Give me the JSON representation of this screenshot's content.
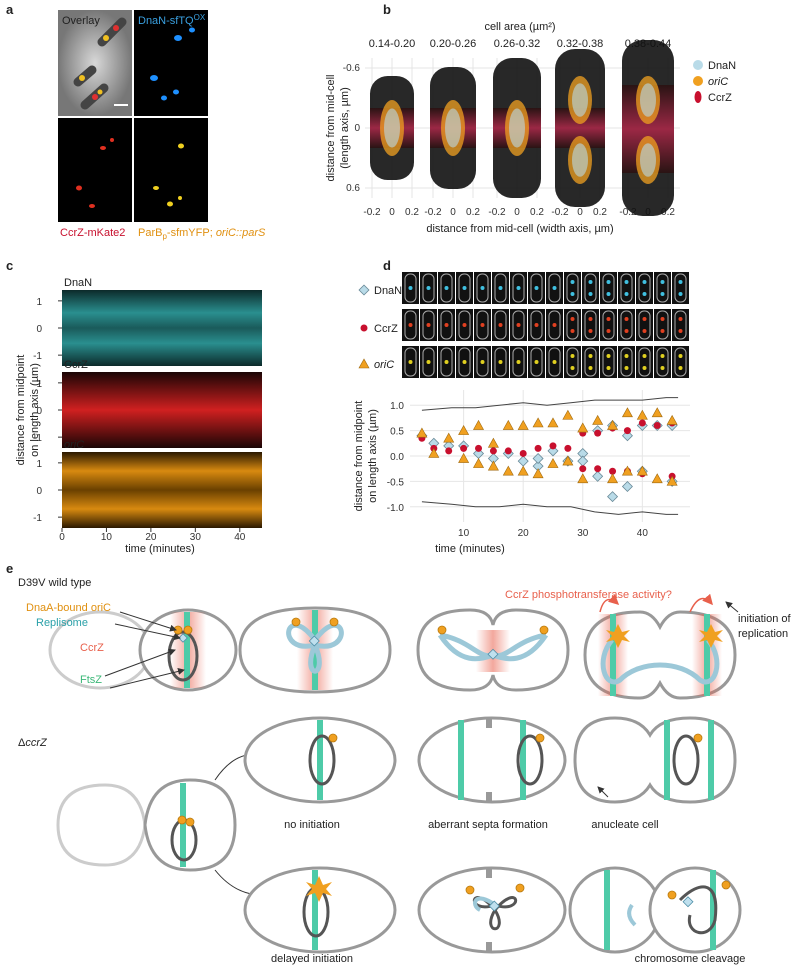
{
  "panel_a": {
    "label": "a",
    "overlay": "Overlay",
    "dnan": "DnaN-sfTQ",
    "dnan_sup": "OX",
    "ccrz": "CcrZ-mKate2",
    "parb": "ParB",
    "parb_sub": "p",
    "parb_rest": "-sfmYFP; ",
    "parb_locus": "oriC::parS"
  },
  "panel_b": {
    "label": "b",
    "title": "cell area (µm²)",
    "bins": [
      "0.14-0.20",
      "0.20-0.26",
      "0.26-0.32",
      "0.32-0.38",
      "0.38-0.44"
    ],
    "ylabel": [
      "distance from mid-cell",
      "(length axis, µm)"
    ],
    "xlabel": "distance from mid-cell (width axis, µm)",
    "ylim": [
      0.7,
      -0.7
    ],
    "yticks": [
      -0.6,
      0,
      0.6
    ],
    "xlim": [
      -0.3,
      0.3
    ],
    "xticks": [
      -0.2,
      0,
      0.2
    ],
    "legend": [
      {
        "name": "DnaN",
        "color": "#b9dbe8"
      },
      {
        "name": "oriC",
        "color": "#f0a020"
      },
      {
        "name": "CcrZ",
        "color": "#c8102e"
      }
    ]
  },
  "panel_c": {
    "label": "c",
    "bands": [
      {
        "name": "DnaN",
        "yticks": [
          1,
          0,
          -1
        ]
      },
      {
        "name": "CcrZ",
        "yticks": [
          1,
          0,
          -1
        ]
      },
      {
        "name": "oriC",
        "yticks": [
          1,
          0,
          -1
        ]
      }
    ],
    "ylim": [
      -1.4,
      1.4
    ],
    "xlim": [
      0,
      45
    ],
    "xticks": [
      0,
      10,
      20,
      30,
      40
    ],
    "xlabel": "time (minutes)",
    "ylabel": [
      "distance from midpoint",
      "on length axis (µm)"
    ]
  },
  "panel_d": {
    "label": "d",
    "chart_data": {
      "type": "scatter",
      "xlabel": "time (minutes)",
      "ylabel": [
        "distance from midpoint",
        "on length axis (µm)"
      ],
      "xlim": [
        1,
        48
      ],
      "xticks": [
        10,
        20,
        30,
        40
      ],
      "ylim": [
        -1.3,
        1.3
      ],
      "yticks": [
        {
          "value": 1,
          "label": "1.0"
        },
        0.5,
        {
          "value": 0,
          "label": "0.0"
        },
        -0.5,
        {
          "value": -1,
          "label": "-1.0"
        }
      ],
      "grid": true,
      "series": [
        {
          "name": "DnaN",
          "color": "#b9dbe8",
          "marker": "diamond",
          "x": [
            3,
            5,
            7.5,
            10,
            12.5,
            15,
            17.5,
            20,
            22.5,
            22.5,
            25,
            27.5,
            30,
            30,
            32.5,
            32.5,
            35,
            35,
            37.5,
            37.5,
            40,
            40,
            42.5,
            45,
            45
          ],
          "values": [
            0.4,
            0.25,
            0.2,
            0.2,
            0.05,
            -0.05,
            0.05,
            -0.1,
            -0.2,
            -0.05,
            0.1,
            -0.1,
            0.05,
            -0.1,
            0.5,
            -0.4,
            0.6,
            -0.8,
            -0.6,
            0.4,
            0.6,
            -0.3,
            0.6,
            0.6,
            -0.5
          ]
        },
        {
          "name": "CcrZ",
          "color": "#c8102e",
          "marker": "circle",
          "x": [
            3,
            5,
            7.5,
            10,
            12.5,
            15,
            17.5,
            20,
            22.5,
            25,
            27.5,
            30,
            30,
            32.5,
            32.5,
            35,
            35,
            37.5,
            37.5,
            40,
            40,
            42.5,
            45,
            45
          ],
          "values": [
            0.35,
            0.15,
            0.1,
            0.15,
            0.15,
            0.1,
            0.1,
            0.05,
            0.15,
            0.2,
            0.15,
            0.45,
            -0.25,
            0.45,
            -0.25,
            0.55,
            -0.3,
            0.5,
            -0.3,
            0.65,
            -0.35,
            0.6,
            0.65,
            -0.4
          ]
        },
        {
          "name": "oriC",
          "color": "#f0a020",
          "marker": "triangle",
          "x": [
            3,
            5,
            7.5,
            10,
            10,
            12.5,
            12.5,
            15,
            15,
            17.5,
            17.5,
            20,
            20,
            22.5,
            22.5,
            25,
            25,
            27.5,
            27.5,
            30,
            30,
            32.5,
            35,
            35,
            37.5,
            37.5,
            40,
            40,
            42.5,
            42.5,
            45,
            45
          ],
          "values": [
            0.45,
            0.05,
            0.35,
            0.5,
            -0.05,
            0.6,
            -0.15,
            0.25,
            -0.2,
            0.6,
            -0.3,
            0.6,
            -0.3,
            0.65,
            -0.35,
            0.65,
            -0.15,
            0.8,
            -0.1,
            0.55,
            -0.45,
            0.7,
            0.6,
            -0.45,
            0.85,
            -0.3,
            0.8,
            -0.3,
            0.85,
            -0.45,
            0.7,
            -0.5
          ]
        }
      ],
      "cell_outline": {
        "x": [
          3,
          8,
          12,
          16,
          20,
          24,
          28,
          32,
          36,
          40,
          44,
          46
        ],
        "top": [
          0.9,
          0.95,
          0.95,
          1.0,
          1.05,
          1.0,
          1.05,
          1.1,
          1.1,
          1.1,
          1.15,
          1.15
        ],
        "bottom": [
          -0.9,
          -0.95,
          -1.0,
          -1.0,
          -0.95,
          -1.0,
          -1.0,
          -1.1,
          -1.15,
          -1.1,
          -1.15,
          -1.15
        ]
      }
    }
  },
  "panel_e": {
    "label": "e",
    "wild_type": "D39V wild type",
    "callouts": {
      "ori": "DnaA-bound oriC",
      "replisome": "Replisome",
      "ccrz": "CcrZ",
      "ftsz": "FtsZ"
    },
    "activity": "CcrZ phosphotransferase activity?",
    "initiation": [
      "initiation of",
      "replication"
    ],
    "mutant_delta": "Δ",
    "mutant_gene": "ccrZ",
    "outcomes": [
      "no initiation",
      "aberrant septa formation",
      "anucleate cell",
      "delayed initiation",
      "chromosome cleavage"
    ]
  }
}
